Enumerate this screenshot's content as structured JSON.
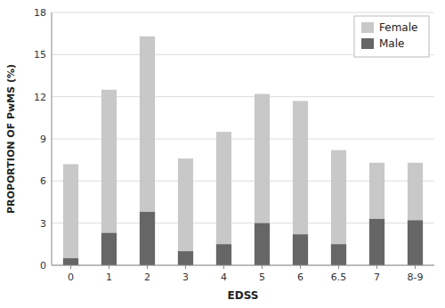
{
  "chart_data": {
    "type": "bar",
    "xlabel": "EDSS",
    "ylabel": "PROPORTION OF PwMS (%)",
    "categories": [
      "0",
      "1",
      "2",
      "3",
      "4",
      "5",
      "6",
      "6.5",
      "7",
      "8-9"
    ],
    "series": [
      {
        "name": "Female",
        "color": "#c8c8c8",
        "values": [
          7.2,
          12.5,
          16.3,
          7.6,
          9.5,
          12.2,
          11.7,
          8.2,
          7.3,
          7.3
        ]
      },
      {
        "name": "Male",
        "color": "#666666",
        "values": [
          0.5,
          2.3,
          3.8,
          1.0,
          1.5,
          3.0,
          2.2,
          1.5,
          3.3,
          3.2
        ]
      }
    ],
    "ylim": [
      0,
      18
    ],
    "yticks": [
      0,
      3,
      6,
      9,
      12,
      15,
      18
    ],
    "grid": true,
    "legend": "upper right"
  }
}
